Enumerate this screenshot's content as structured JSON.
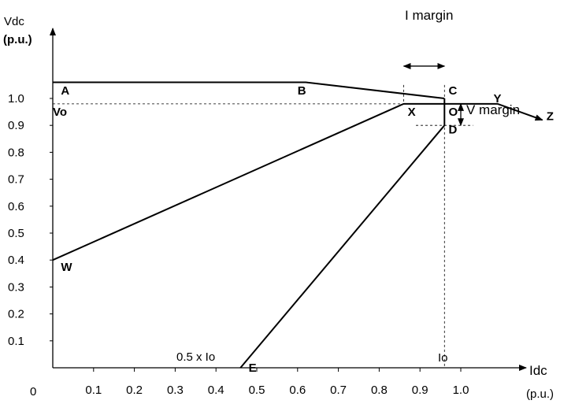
{
  "chart_data": {
    "type": "line",
    "origin_label": "0",
    "xlabel": {
      "line1": "Idc",
      "line2": "(p.u.)"
    },
    "ylabel": {
      "line1": "Vdc",
      "line2": "(p.u.)"
    },
    "x_ticks": [
      0.1,
      0.2,
      0.3,
      0.4,
      0.5,
      0.6,
      0.7,
      0.8,
      0.9,
      1.0
    ],
    "y_ticks": [
      0.1,
      0.2,
      0.3,
      0.4,
      0.5,
      0.6,
      0.7,
      0.8,
      0.9,
      1.0
    ],
    "xlim": [
      0,
      1.2
    ],
    "ylim": [
      0,
      1.1
    ],
    "series": [
      {
        "points": [
          [
            0,
            1.06
          ],
          [
            0.62,
            1.06
          ],
          [
            0.96,
            1.0
          ]
        ]
      },
      {
        "points": [
          [
            0,
            0.4
          ],
          [
            0.86,
            0.98
          ],
          [
            0.96,
            0.98
          ]
        ]
      },
      {
        "points": [
          [
            0.96,
            1.0
          ],
          [
            0.96,
            0.9
          ],
          [
            0.46,
            0.0
          ]
        ]
      },
      {
        "points": [
          [
            0.96,
            0.98
          ],
          [
            1.09,
            0.98
          ],
          [
            1.2,
            0.92
          ]
        ]
      }
    ],
    "reference_lines": [
      {
        "from": [
          0,
          0.98
        ],
        "to": [
          0.96,
          0.98
        ],
        "style": "dashed"
      },
      {
        "from": [
          0.96,
          1.05
        ],
        "to": [
          0.96,
          0.0
        ],
        "style": "dashed"
      },
      {
        "from": [
          0.86,
          1.05
        ],
        "to": [
          0.86,
          0.98
        ],
        "style": "dashed"
      },
      {
        "from": [
          0.89,
          0.9
        ],
        "to": [
          1.03,
          0.9
        ],
        "style": "dashed"
      }
    ],
    "arrows": [
      {
        "from": [
          0.86,
          1.12
        ],
        "to": [
          0.96,
          1.12
        ],
        "double": true
      },
      {
        "from": [
          1.0,
          0.98
        ],
        "to": [
          1.0,
          0.9
        ],
        "double": true
      }
    ],
    "point_labels": [
      {
        "text": "A",
        "x": 0.02,
        "y": 1.015
      },
      {
        "text": "B",
        "x": 0.6,
        "y": 1.015
      },
      {
        "text": "C",
        "x": 0.97,
        "y": 1.015
      },
      {
        "text": "Y",
        "x": 1.08,
        "y": 0.985
      },
      {
        "text": "Z",
        "x": 1.21,
        "y": 0.92
      },
      {
        "text": "Vo",
        "x": 0.0,
        "y": 0.935
      },
      {
        "text": "X",
        "x": 0.87,
        "y": 0.935
      },
      {
        "text": "O",
        "x": 0.97,
        "y": 0.935
      },
      {
        "text": "D",
        "x": 0.97,
        "y": 0.87
      },
      {
        "text": "W",
        "x": 0.02,
        "y": 0.36
      },
      {
        "text": "E",
        "x": 0.48,
        "y": -0.015
      }
    ],
    "annotations": {
      "i_margin": "I margin",
      "v_margin": "V margin",
      "half_io": "0.5 x Io",
      "io": "Io"
    }
  }
}
